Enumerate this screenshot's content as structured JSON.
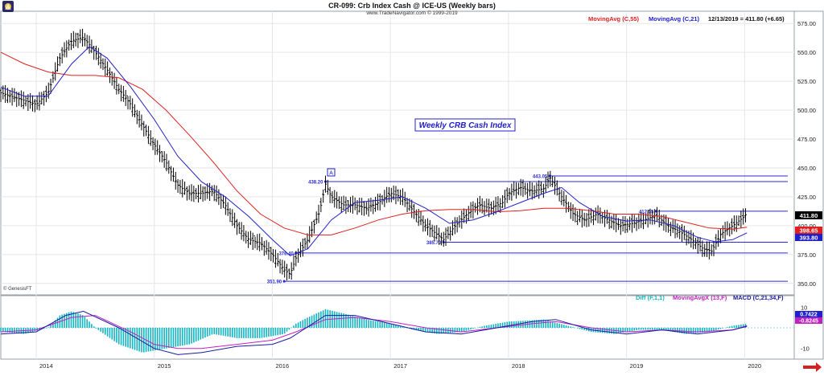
{
  "header": {
    "title": "CR-099:  Crb Index Cash @ ICE-US  (Weekly bars)",
    "copyright": "www.TradeNavigator.com © 1999-2019"
  },
  "legend": {
    "ma55": "MovingAvg (C,55)",
    "ma21": "MovingAvg (C,21)",
    "last": "12/13/2019 = 411.80 (+6.65)"
  },
  "annotation": {
    "box_title": "Weekly CRB Cash Index",
    "marker": "A"
  },
  "watermark": "© GenesisFT",
  "macd_legend": {
    "diff": "Diff (F,1,1)",
    "mavgx": "MovingAvgX (13,F)",
    "macd": "MACD (C,21,34,F)"
  },
  "price_tags": {
    "close": "411.80",
    "ma55": "398.65",
    "ma21": "393.80"
  },
  "macd_tags": {
    "top": "0.7422",
    "bottom": "-0.8245"
  },
  "colors": {
    "bars": "#000000",
    "ma55": "#e02020",
    "ma21": "#2020c8",
    "hlines": "#2a2ad8",
    "diff": "#11b5c2",
    "mavgx": "#c020c0",
    "macd": "#1a1aa0",
    "box_text": "#2020c8",
    "arrow": "#d42020"
  },
  "chart_data": {
    "type": "ohlc-bar",
    "title": "CR-099:  Crb Index Cash @ ICE-US  (Weekly bars)",
    "timeframe": "weekly",
    "x_labels": [
      "2014",
      "2015",
      "2016",
      "2017",
      "2018",
      "2019",
      "2020"
    ],
    "y_ticks": [
      "575.00",
      "550.00",
      "525.00",
      "500.00",
      "475.00",
      "450.00",
      "425.00",
      "400.00",
      "375.00",
      "350.00"
    ],
    "ylim": [
      345,
      580
    ],
    "close_points": [
      [
        2013.7,
        515
      ],
      [
        2013.85,
        510
      ],
      [
        2014.0,
        505
      ],
      [
        2014.1,
        515
      ],
      [
        2014.2,
        545
      ],
      [
        2014.3,
        560
      ],
      [
        2014.4,
        563
      ],
      [
        2014.5,
        550
      ],
      [
        2014.6,
        535
      ],
      [
        2014.7,
        518
      ],
      [
        2014.8,
        505
      ],
      [
        2014.9,
        487
      ],
      [
        2015.0,
        470
      ],
      [
        2015.1,
        455
      ],
      [
        2015.2,
        435
      ],
      [
        2015.3,
        428
      ],
      [
        2015.4,
        428
      ],
      [
        2015.5,
        430
      ],
      [
        2015.6,
        418
      ],
      [
        2015.7,
        400
      ],
      [
        2015.8,
        388
      ],
      [
        2015.9,
        385
      ],
      [
        2016.0,
        375
      ],
      [
        2016.1,
        362
      ],
      [
        2016.15,
        358
      ],
      [
        2016.2,
        372
      ],
      [
        2016.3,
        388
      ],
      [
        2016.4,
        412
      ],
      [
        2016.45,
        436
      ],
      [
        2016.5,
        425
      ],
      [
        2016.6,
        418
      ],
      [
        2016.7,
        418
      ],
      [
        2016.8,
        415
      ],
      [
        2016.9,
        420
      ],
      [
        2017.0,
        428
      ],
      [
        2017.1,
        425
      ],
      [
        2017.2,
        412
      ],
      [
        2017.3,
        400
      ],
      [
        2017.4,
        392
      ],
      [
        2017.45,
        388
      ],
      [
        2017.55,
        400
      ],
      [
        2017.65,
        410
      ],
      [
        2017.75,
        418
      ],
      [
        2017.85,
        415
      ],
      [
        2017.95,
        420
      ],
      [
        2018.0,
        428
      ],
      [
        2018.1,
        433
      ],
      [
        2018.2,
        430
      ],
      [
        2018.3,
        432
      ],
      [
        2018.35,
        442
      ],
      [
        2018.45,
        425
      ],
      [
        2018.55,
        410
      ],
      [
        2018.65,
        405
      ],
      [
        2018.75,
        410
      ],
      [
        2018.85,
        405
      ],
      [
        2018.95,
        400
      ],
      [
        2019.05,
        402
      ],
      [
        2019.15,
        405
      ],
      [
        2019.25,
        409
      ],
      [
        2019.35,
        400
      ],
      [
        2019.45,
        395
      ],
      [
        2019.55,
        388
      ],
      [
        2019.65,
        380
      ],
      [
        2019.72,
        378
      ],
      [
        2019.8,
        393
      ],
      [
        2019.9,
        400
      ],
      [
        2020.0,
        408
      ],
      [
        2020.02,
        411.8
      ]
    ],
    "ma55": [
      [
        2013.7,
        550
      ],
      [
        2013.9,
        540
      ],
      [
        2014.1,
        533
      ],
      [
        2014.3,
        530
      ],
      [
        2014.5,
        530
      ],
      [
        2014.7,
        528
      ],
      [
        2014.9,
        518
      ],
      [
        2015.1,
        500
      ],
      [
        2015.3,
        478
      ],
      [
        2015.5,
        455
      ],
      [
        2015.7,
        430
      ],
      [
        2015.9,
        410
      ],
      [
        2016.1,
        398
      ],
      [
        2016.3,
        392
      ],
      [
        2016.5,
        392
      ],
      [
        2016.7,
        398
      ],
      [
        2016.9,
        405
      ],
      [
        2017.1,
        410
      ],
      [
        2017.3,
        413
      ],
      [
        2017.5,
        414
      ],
      [
        2017.7,
        414
      ],
      [
        2017.9,
        412
      ],
      [
        2018.1,
        413
      ],
      [
        2018.3,
        415
      ],
      [
        2018.5,
        415
      ],
      [
        2018.7,
        413
      ],
      [
        2018.9,
        410
      ],
      [
        2019.1,
        410
      ],
      [
        2019.3,
        408
      ],
      [
        2019.5,
        403
      ],
      [
        2019.7,
        398
      ],
      [
        2019.9,
        397
      ],
      [
        2020.02,
        398.65
      ]
    ],
    "ma21": [
      [
        2013.7,
        520
      ],
      [
        2013.9,
        512
      ],
      [
        2014.1,
        512
      ],
      [
        2014.3,
        540
      ],
      [
        2014.45,
        555
      ],
      [
        2014.6,
        545
      ],
      [
        2014.8,
        520
      ],
      [
        2015.0,
        492
      ],
      [
        2015.2,
        460
      ],
      [
        2015.4,
        438
      ],
      [
        2015.6,
        425
      ],
      [
        2015.8,
        408
      ],
      [
        2016.0,
        388
      ],
      [
        2016.15,
        374
      ],
      [
        2016.3,
        380
      ],
      [
        2016.5,
        405
      ],
      [
        2016.7,
        420
      ],
      [
        2016.9,
        422
      ],
      [
        2017.1,
        425
      ],
      [
        2017.3,
        415
      ],
      [
        2017.5,
        402
      ],
      [
        2017.7,
        405
      ],
      [
        2017.9,
        412
      ],
      [
        2018.1,
        420
      ],
      [
        2018.3,
        428
      ],
      [
        2018.45,
        433
      ],
      [
        2018.6,
        420
      ],
      [
        2018.8,
        408
      ],
      [
        2019.0,
        404
      ],
      [
        2019.2,
        405
      ],
      [
        2019.4,
        400
      ],
      [
        2019.6,
        390
      ],
      [
        2019.75,
        386
      ],
      [
        2019.9,
        388
      ],
      [
        2020.02,
        393.8
      ]
    ],
    "horizontal_levels": [
      {
        "value": 443.05,
        "label": "443.05"
      },
      {
        "value": 438.2,
        "label": "438.20"
      },
      {
        "value": 412.55,
        "label": "412.55"
      },
      {
        "value": 385.7,
        "label": "385.70"
      },
      {
        "value": 376.4,
        "label": "376.40"
      },
      {
        "value": 351.9,
        "label": "351.90"
      }
    ],
    "macd_panel": {
      "y_ticks": [
        "10",
        "-10"
      ],
      "ylim": [
        -14,
        14
      ],
      "hist": [
        [
          2013.7,
          -2
        ],
        [
          2013.9,
          -3
        ],
        [
          2014.1,
          0
        ],
        [
          2014.2,
          6
        ],
        [
          2014.3,
          8
        ],
        [
          2014.4,
          6
        ],
        [
          2014.5,
          0
        ],
        [
          2014.7,
          -8
        ],
        [
          2014.9,
          -12
        ],
        [
          2015.1,
          -10
        ],
        [
          2015.3,
          -8
        ],
        [
          2015.5,
          -3
        ],
        [
          2015.7,
          -5
        ],
        [
          2015.9,
          -5
        ],
        [
          2016.1,
          -3
        ],
        [
          2016.2,
          2
        ],
        [
          2016.3,
          5
        ],
        [
          2016.45,
          9
        ],
        [
          2016.6,
          7
        ],
        [
          2016.8,
          4
        ],
        [
          2017.0,
          2
        ],
        [
          2017.2,
          -1
        ],
        [
          2017.4,
          -3
        ],
        [
          2017.6,
          -2
        ],
        [
          2017.8,
          1
        ],
        [
          2018.0,
          3
        ],
        [
          2018.3,
          4
        ],
        [
          2018.5,
          1
        ],
        [
          2018.7,
          -2
        ],
        [
          2018.9,
          -3
        ],
        [
          2019.1,
          -1
        ],
        [
          2019.3,
          -1
        ],
        [
          2019.5,
          -3
        ],
        [
          2019.7,
          -2
        ],
        [
          2019.9,
          1
        ],
        [
          2020.02,
          2
        ]
      ],
      "mavgx": [
        [
          2013.7,
          -2
        ],
        [
          2014.0,
          -1
        ],
        [
          2014.3,
          5
        ],
        [
          2014.5,
          6
        ],
        [
          2014.8,
          -2
        ],
        [
          2015.0,
          -8
        ],
        [
          2015.2,
          -10
        ],
        [
          2015.4,
          -10
        ],
        [
          2015.7,
          -8
        ],
        [
          2016.0,
          -6
        ],
        [
          2016.2,
          -2
        ],
        [
          2016.45,
          4
        ],
        [
          2016.7,
          5
        ],
        [
          2017.0,
          3
        ],
        [
          2017.3,
          0
        ],
        [
          2017.6,
          -2
        ],
        [
          2017.9,
          0
        ],
        [
          2018.2,
          2
        ],
        [
          2018.4,
          3
        ],
        [
          2018.7,
          0
        ],
        [
          2019.0,
          -2
        ],
        [
          2019.3,
          -1
        ],
        [
          2019.6,
          -2
        ],
        [
          2019.9,
          -1
        ],
        [
          2020.02,
          1
        ]
      ],
      "macd": [
        [
          2013.7,
          -3
        ],
        [
          2014.0,
          -2
        ],
        [
          2014.25,
          6
        ],
        [
          2014.4,
          8
        ],
        [
          2014.7,
          0
        ],
        [
          2015.0,
          -10
        ],
        [
          2015.2,
          -13
        ],
        [
          2015.4,
          -12
        ],
        [
          2015.7,
          -9
        ],
        [
          2016.0,
          -8
        ],
        [
          2016.15,
          -5
        ],
        [
          2016.45,
          6
        ],
        [
          2016.7,
          6
        ],
        [
          2017.0,
          2
        ],
        [
          2017.3,
          -2
        ],
        [
          2017.6,
          -3
        ],
        [
          2017.9,
          0
        ],
        [
          2018.2,
          3
        ],
        [
          2018.4,
          4
        ],
        [
          2018.7,
          -1
        ],
        [
          2019.0,
          -3
        ],
        [
          2019.3,
          -1
        ],
        [
          2019.6,
          -3
        ],
        [
          2019.9,
          -1
        ],
        [
          2020.02,
          0.7
        ]
      ]
    }
  }
}
